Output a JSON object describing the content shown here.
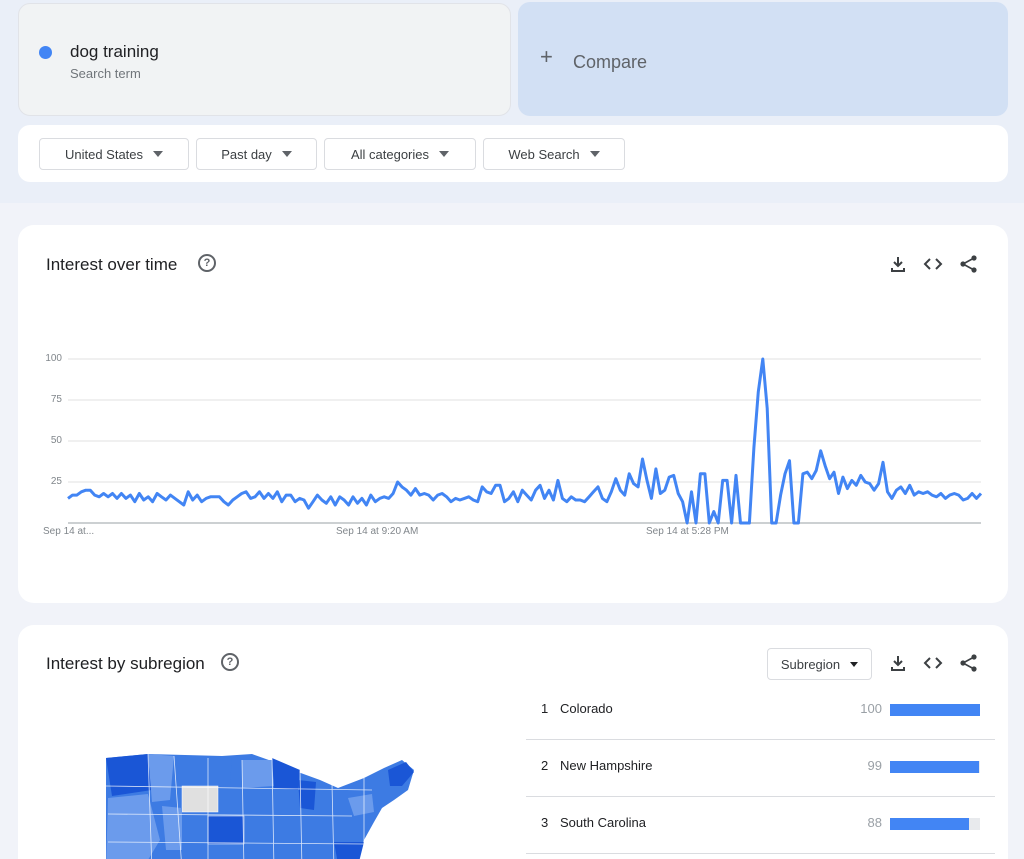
{
  "search": {
    "term": "dog training",
    "term_type": "Search term",
    "term_color": "#4285f4",
    "compare_label": "Compare"
  },
  "filters": [
    {
      "label": "United States",
      "icon": "caret-down-icon"
    },
    {
      "label": "Past day",
      "icon": "caret-down-icon"
    },
    {
      "label": "All categories",
      "icon": "caret-down-icon"
    },
    {
      "label": "Web Search",
      "icon": "caret-down-icon"
    }
  ],
  "interest_over_time": {
    "title": "Interest over time",
    "actions": [
      "download-icon",
      "embed-code-icon",
      "share-icon"
    ]
  },
  "chart_data": {
    "type": "line",
    "ylim": [
      0,
      100
    ],
    "yticks": [
      25,
      50,
      75,
      100
    ],
    "xtick_labels": [
      "Sep 14 at...",
      "Sep 14 at 9:20 AM",
      "Sep 14 at 5:28 PM"
    ],
    "grid": true,
    "series": [
      {
        "color": "#4285f4",
        "values": [
          15,
          17,
          17,
          19,
          20,
          20,
          17,
          16,
          18,
          16,
          18,
          15,
          18,
          15,
          17,
          13,
          18,
          14,
          16,
          13,
          18,
          16,
          14,
          17,
          15,
          13,
          11,
          19,
          14,
          17,
          13,
          15,
          16,
          16,
          16,
          13,
          11,
          14,
          16,
          18,
          19,
          15,
          16,
          19,
          15,
          18,
          15,
          19,
          13,
          17,
          17,
          13,
          15,
          14,
          9,
          13,
          17,
          14,
          12,
          16,
          11,
          16,
          14,
          11,
          16,
          12,
          15,
          11,
          17,
          13,
          15,
          16,
          15,
          18,
          25,
          22,
          20,
          17,
          21,
          17,
          18,
          17,
          14,
          17,
          18,
          16,
          13,
          15,
          14,
          15,
          16,
          14,
          13,
          22,
          19,
          18,
          23,
          23,
          13,
          15,
          19,
          13,
          20,
          17,
          14,
          20,
          23,
          15,
          20,
          14,
          26,
          15,
          13,
          16,
          14,
          14,
          13,
          16,
          19,
          22,
          15,
          13,
          19,
          27,
          20,
          17,
          30,
          24,
          22,
          39,
          26,
          15,
          33,
          18,
          20,
          28,
          29,
          18,
          13,
          0,
          19,
          0,
          30,
          30,
          0,
          7,
          0,
          26,
          26,
          0,
          29,
          0,
          0,
          0,
          46,
          80,
          100,
          70,
          0,
          0,
          17,
          30,
          38,
          0,
          0,
          30,
          31,
          27,
          32,
          44,
          35,
          27,
          31,
          18,
          28,
          21,
          26,
          23,
          29,
          25,
          24,
          20,
          24,
          37,
          19,
          15,
          20,
          22,
          18,
          23,
          17,
          19,
          18,
          19,
          17,
          16,
          18,
          15,
          17,
          18,
          17,
          14,
          15,
          18,
          15,
          18
        ]
      }
    ]
  },
  "interest_by_subregion": {
    "title": "Interest by subregion",
    "selector_label": "Subregion",
    "actions": [
      "download-icon",
      "embed-code-icon",
      "share-icon"
    ],
    "rows": [
      {
        "rank": "1",
        "name": "Colorado",
        "value": "100",
        "fraction": 1.0
      },
      {
        "rank": "2",
        "name": "New Hampshire",
        "value": "99",
        "fraction": 0.99
      },
      {
        "rank": "3",
        "name": "South Carolina",
        "value": "88",
        "fraction": 0.88
      }
    ],
    "map_colors": {
      "high": "#1a56d6",
      "mid": "#3d7be3",
      "low": "#6b9bec",
      "no_data": "#e0e0e0"
    }
  }
}
